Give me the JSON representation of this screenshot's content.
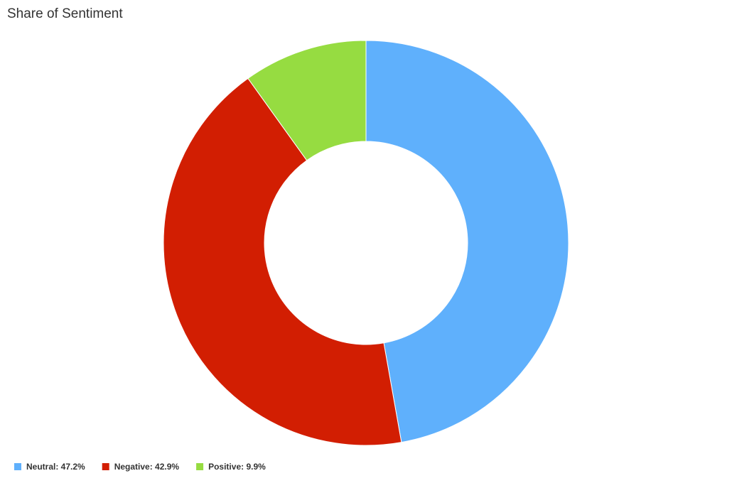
{
  "chart_data": {
    "type": "donut",
    "title": "Share of Sentiment",
    "categories": [
      "Neutral: 47.2%",
      "Negative: 42.9%",
      "Positive: 9.9%"
    ],
    "values": [
      47.2,
      42.9,
      9.9
    ],
    "colors": [
      "#5fb0fc",
      "#d21e02",
      "#96dc41"
    ],
    "legend": "bottom-left"
  }
}
